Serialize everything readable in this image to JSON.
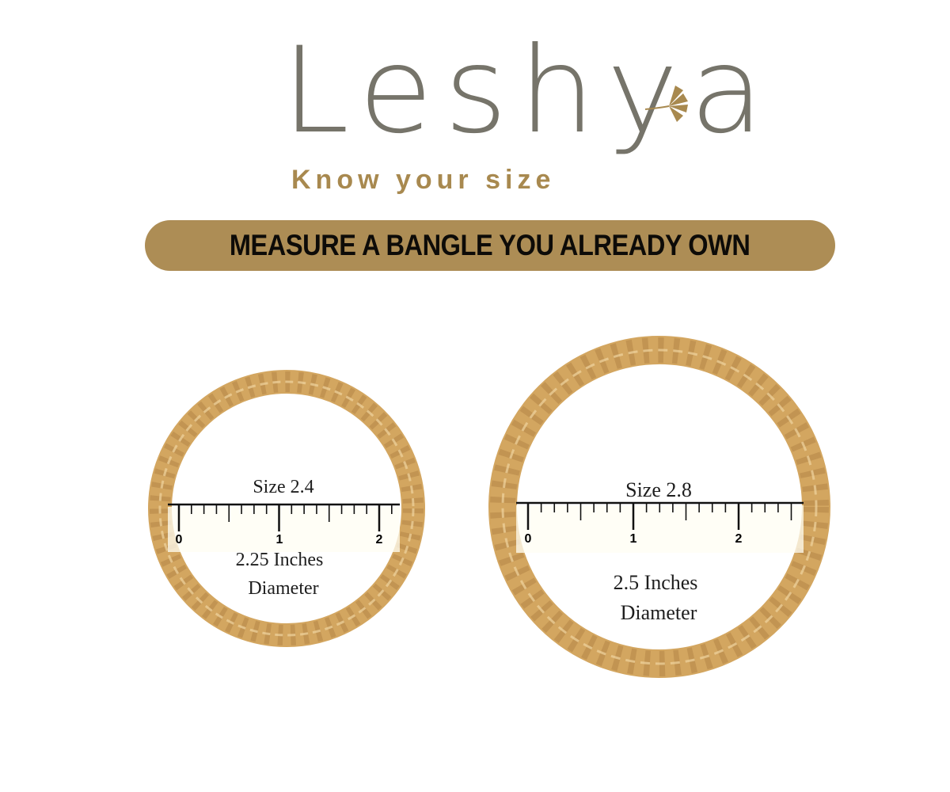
{
  "brand": {
    "name": "Leshya",
    "tagline": "Know your size"
  },
  "banner": {
    "text": "MEASURE A BANGLE YOU ALREADY OWN"
  },
  "colors": {
    "gold": "#ad8d55",
    "logo_gray": "#76746a",
    "bangle": "#d3a660"
  },
  "bangles": [
    {
      "size_label": "Size 2.4",
      "diameter_line1": "2.25 Inches",
      "diameter_line2": "Diameter",
      "ruler_labels": [
        "0",
        "1",
        "2"
      ]
    },
    {
      "size_label": "Size 2.8",
      "diameter_line1": "2.5 Inches",
      "diameter_line2": "Diameter",
      "ruler_labels": [
        "0",
        "1",
        "2"
      ]
    }
  ]
}
